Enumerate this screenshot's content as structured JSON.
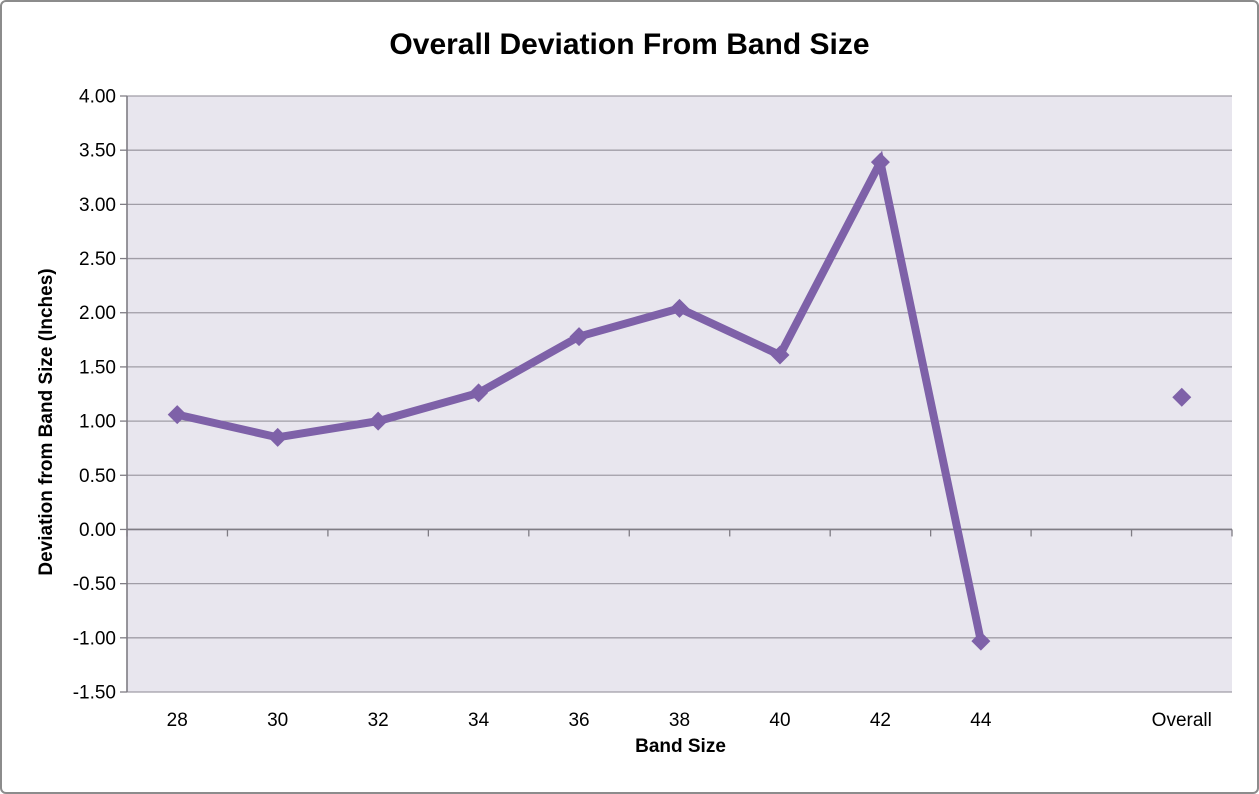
{
  "chart_data": {
    "type": "line",
    "title": "Overall Deviation From Band Size",
    "xlabel": "Band Size",
    "ylabel": "Deviation from Band Size (Inches)",
    "categories": [
      "28",
      "30",
      "32",
      "34",
      "36",
      "38",
      "40",
      "42",
      "44",
      "",
      "Overall"
    ],
    "series": [
      {
        "name": "deviation",
        "values": [
          1.06,
          0.85,
          1.0,
          1.26,
          1.78,
          2.04,
          1.61,
          3.39,
          -1.03,
          null,
          1.22
        ]
      }
    ],
    "ylim": [
      -1.5,
      4.0
    ],
    "ytick_step": 0.5,
    "y_tick_labels": [
      "4.00",
      "3.50",
      "3.00",
      "2.50",
      "2.00",
      "1.50",
      "1.00",
      "0.50",
      "0.00",
      "-0.50",
      "-1.00",
      "-1.50"
    ],
    "grid": "horizontal",
    "legend": "none",
    "marker": "diamond",
    "colors": {
      "line": "#7E61A8",
      "plot_bg": "#E8E6EE",
      "gridline": "#A09DA6",
      "axis": "#7F7C84",
      "text": "#000000",
      "canvas_border": "#8C8C8C"
    }
  }
}
